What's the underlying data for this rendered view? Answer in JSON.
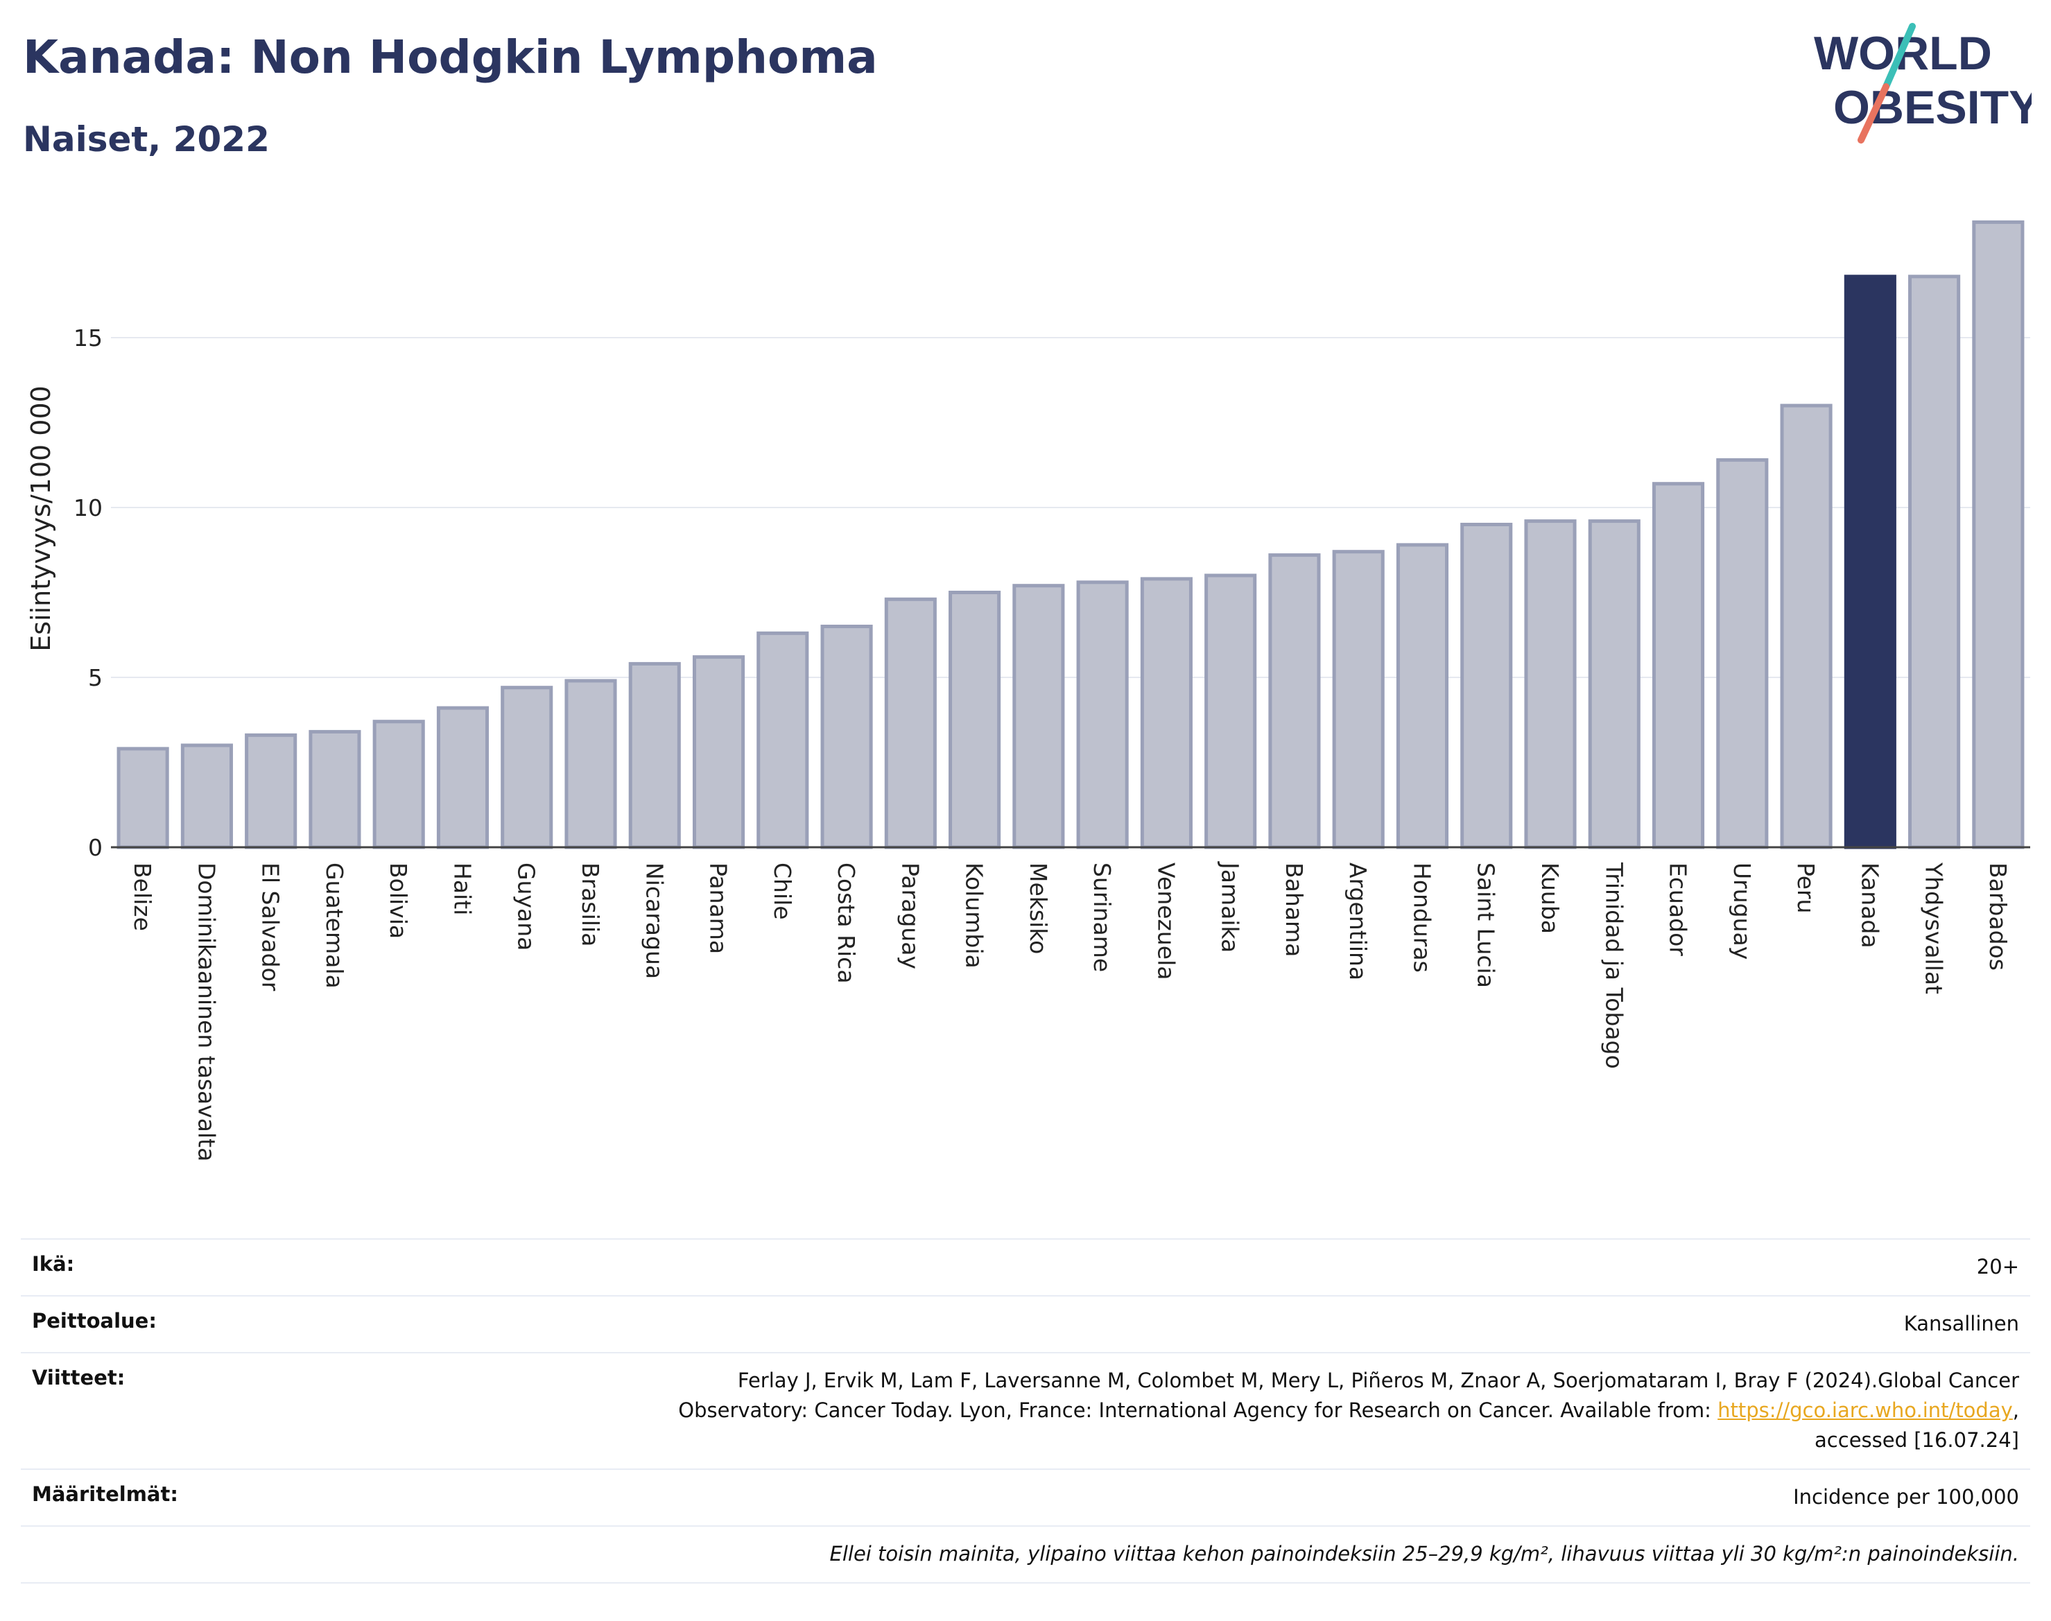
{
  "header": {
    "title": "Kanada: Non Hodgkin Lymphoma",
    "subtitle": "Naiset, 2022"
  },
  "logo": {
    "line1": "WORLD",
    "line2": "OBESITY"
  },
  "colors": {
    "bar_default": "#bec1ce",
    "bar_default_stroke": "#9aa0b8",
    "bar_highlight": "#2b3560",
    "title": "#2b3560",
    "logo_teal": "#3bbfb7",
    "logo_coral": "#e8735f",
    "grid": "#e6e9f0",
    "link": "#e8a720"
  },
  "chart_data": {
    "type": "bar",
    "ylabel": "Esiintyvyys/100 000",
    "xlabel": "",
    "ylim": [
      0,
      18.5
    ],
    "yticks": [
      0,
      5,
      10,
      15
    ],
    "grid": true,
    "highlight": "Kanada",
    "categories": [
      "Belize",
      "Dominikaaninen tasavalta",
      "El Salvador",
      "Guatemala",
      "Bolivia",
      "Haiti",
      "Guyana",
      "Brasilia",
      "Nicaragua",
      "Panama",
      "Chile",
      "Costa Rica",
      "Paraguay",
      "Kolumbia",
      "Meksiko",
      "Suriname",
      "Venezuela",
      "Jamaika",
      "Bahama",
      "Argentiina",
      "Honduras",
      "Saint Lucia",
      "Kuuba",
      "Trinidad ja Tobago",
      "Ecuador",
      "Uruguay",
      "Peru",
      "Kanada",
      "Yhdysvallat",
      "Barbados"
    ],
    "values": [
      2.9,
      3.0,
      3.3,
      3.4,
      3.7,
      4.1,
      4.7,
      4.9,
      5.4,
      5.6,
      6.3,
      6.5,
      7.3,
      7.5,
      7.7,
      7.8,
      7.9,
      8.0,
      8.6,
      8.7,
      8.9,
      9.5,
      9.6,
      9.6,
      10.7,
      11.4,
      13.0,
      16.8,
      16.8,
      18.4
    ]
  },
  "info": {
    "age_label": "Ikä:",
    "age_value": "20+",
    "coverage_label": "Peittoalue:",
    "coverage_value": "Kansallinen",
    "refs_label": "Viitteet:",
    "refs_line1": "Ferlay J, Ervik M, Lam F, Laversanne M, Colombet M, Mery L, Piñeros M, Znaor A, Soerjomataram I, Bray F (2024).Global Cancer",
    "refs_line2_pre": "Observatory: Cancer Today. Lyon, France: International Agency for Research on Cancer. Available from:",
    "refs_link": "https://gco.iarc.who.int/today",
    "refs_line3": "accessed [16.07.24]",
    "definitions_label": "Määritelmät:",
    "definitions_value": "Incidence per 100,000",
    "note": "Ellei toisin mainita, ylipaino viittaa kehon painoindeksiin 25–29,9 kg/m², lihavuus viittaa yli 30 kg/m²:n painoindeksiin."
  }
}
